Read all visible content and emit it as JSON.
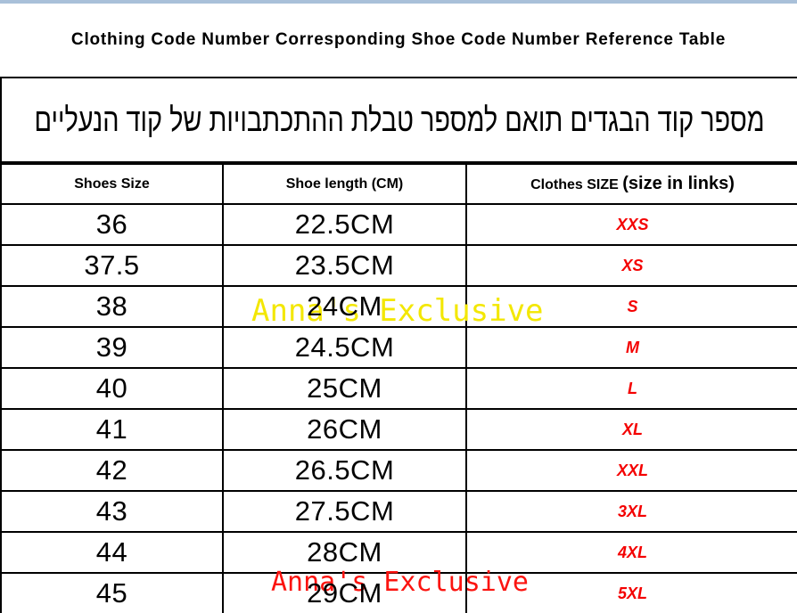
{
  "page": {
    "title_en": "Clothing Code Number Corresponding Shoe Code Number Reference Table",
    "title_he": "מספר קוד הבגדים תואם למספר טבלת ההתכתבויות של קוד הנעליים"
  },
  "table": {
    "headers": {
      "shoes_size": "Shoes Size",
      "shoe_length": "Shoe length (CM)",
      "clothes_size_small": "Clothes SIZE",
      "clothes_size_large": "(size in links)"
    },
    "rows": [
      {
        "shoe_size": "36",
        "shoe_length": "22.5CM",
        "clothes_size": "XXS"
      },
      {
        "shoe_size": "37.5",
        "shoe_length": "23.5CM",
        "clothes_size": "XS"
      },
      {
        "shoe_size": "38",
        "shoe_length": "24CM",
        "clothes_size": "S"
      },
      {
        "shoe_size": "39",
        "shoe_length": "24.5CM",
        "clothes_size": "M"
      },
      {
        "shoe_size": "40",
        "shoe_length": "25CM",
        "clothes_size": "L"
      },
      {
        "shoe_size": "41",
        "shoe_length": "26CM",
        "clothes_size": "XL"
      },
      {
        "shoe_size": "42",
        "shoe_length": "26.5CM",
        "clothes_size": "XXL"
      },
      {
        "shoe_size": "43",
        "shoe_length": "27.5CM",
        "clothes_size": "3XL"
      },
      {
        "shoe_size": "44",
        "shoe_length": "28CM",
        "clothes_size": "4XL"
      },
      {
        "shoe_size": "45",
        "shoe_length": "29CM",
        "clothes_size": "5XL"
      }
    ]
  },
  "watermarks": {
    "yellow_text": "Anna's Exclusive",
    "red_text": "Anna's Exclusive"
  },
  "colors": {
    "top_bar": "#a9c0d9",
    "size_text_red": "#f40000",
    "watermark_yellow": "#f3e703",
    "watermark_red": "#fb1410",
    "border_black": "#000000"
  }
}
